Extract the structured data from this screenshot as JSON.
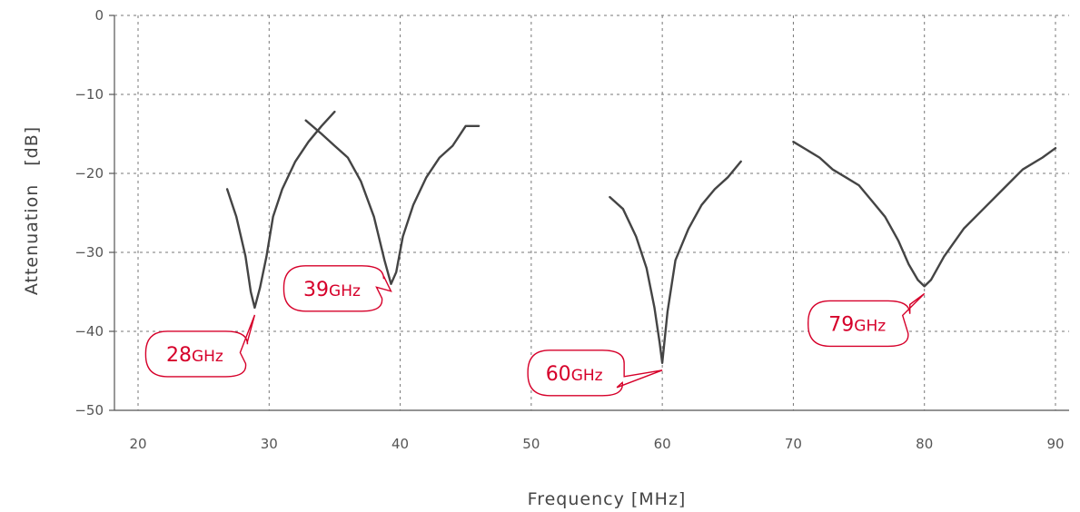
{
  "chart_data": {
    "type": "line",
    "title": "",
    "xlabel": "Frequency [MHz]",
    "ylabel": "Attenuation　[dB]",
    "xlim": [
      18,
      92
    ],
    "ylim": [
      -50,
      0
    ],
    "xticks": [
      20,
      30,
      40,
      50,
      60,
      70,
      80,
      90
    ],
    "yticks": [
      0,
      -10,
      -20,
      -30,
      -40,
      -50
    ],
    "xtick_labels": [
      "20",
      "30",
      "40",
      "50",
      "60",
      "70",
      "80",
      "90"
    ],
    "ytick_labels": [
      "0",
      "−10",
      "−20",
      "−30",
      "−40",
      "−50"
    ],
    "grid": true,
    "series": [
      {
        "x": [
          26.8,
          27.5,
          28.2,
          28.6,
          28.9,
          29.3,
          29.8,
          30.3,
          31,
          32,
          33,
          34,
          35
        ],
        "y": [
          -22,
          -25.5,
          -30.5,
          -35,
          -37,
          -34.5,
          -30.5,
          -25.5,
          -22,
          -18.5,
          -16,
          -14,
          -12.2
        ]
      },
      {
        "x": [
          32.8,
          34,
          35,
          36,
          37,
          38,
          38.8,
          39.3,
          39.7,
          40.2,
          41,
          42,
          43,
          44,
          45,
          46
        ],
        "y": [
          -13.3,
          -15,
          -16.5,
          -18,
          -21,
          -25.5,
          -31,
          -34,
          -32.5,
          -28,
          -24,
          -20.5,
          -18,
          -16.5,
          -14,
          -14
        ]
      },
      {
        "x": [
          56,
          57,
          58,
          58.8,
          59.4,
          59.8,
          60,
          60.4,
          61,
          62,
          63,
          64,
          65,
          66
        ],
        "y": [
          -23,
          -24.5,
          -28,
          -32,
          -37,
          -41.5,
          -44,
          -37.5,
          -31,
          -27,
          -24,
          -22,
          -20.5,
          -18.5
        ]
      },
      {
        "x": [
          70,
          71,
          72,
          73,
          74,
          75,
          76,
          77,
          78,
          78.8,
          79.5,
          80,
          80.5,
          81.5,
          83,
          84.5,
          86,
          87.5,
          89,
          90
        ],
        "y": [
          -16,
          -17,
          -18,
          -19.5,
          -20.5,
          -21.5,
          -23.5,
          -25.5,
          -28.5,
          -31.5,
          -33.5,
          -34.3,
          -33.5,
          -30.5,
          -27,
          -24.5,
          -22,
          -19.5,
          -18,
          -16.8
        ]
      }
    ],
    "annotations": [
      {
        "num": "28",
        "unit": "GHz",
        "x": 28.9,
        "y": -37
      },
      {
        "num": "39",
        "unit": "GHz",
        "x": 39.3,
        "y": -34
      },
      {
        "num": "60",
        "unit": "GHz",
        "x": 60,
        "y": -44
      },
      {
        "num": "79",
        "unit": "GHz",
        "x": 80,
        "y": -34.3
      }
    ],
    "colors": {
      "line": "#444444",
      "annotation": "#d6002a",
      "grid": "#777777"
    }
  }
}
